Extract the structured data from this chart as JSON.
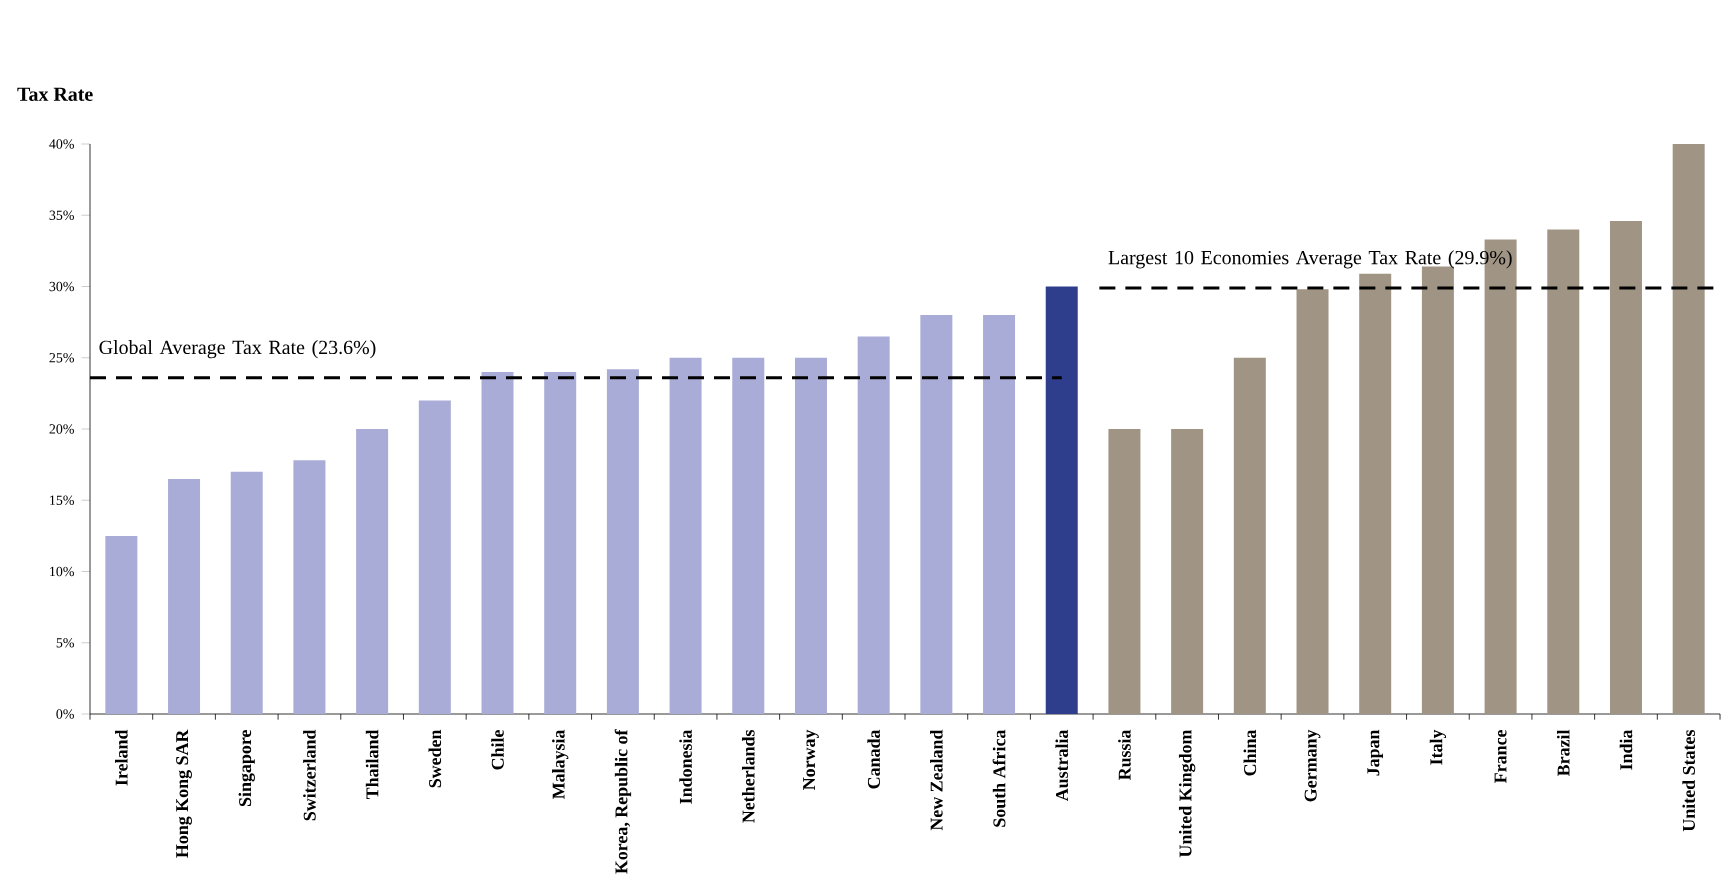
{
  "chart_data": {
    "type": "bar",
    "ylabel": "Tax Rate",
    "categories": [
      "Ireland",
      "Hong Kong SAR",
      "Singapore",
      "Switzerland",
      "Thailand",
      "Sweden",
      "Chile",
      "Malaysia",
      "Korea, Republic of",
      "Indonesia",
      "Netherlands",
      "Norway",
      "Canada",
      "New Zealand",
      "South Africa",
      "Australia",
      "Russia",
      "United Kingdom",
      "China",
      "Germany",
      "Japan",
      "Italy",
      "France",
      "Brazil",
      "India",
      "United States"
    ],
    "values": [
      12.5,
      16.5,
      17,
      17.8,
      20,
      22,
      24,
      24,
      24.2,
      25,
      25,
      25,
      26.5,
      28,
      28,
      30,
      20,
      20,
      25,
      29.8,
      30.9,
      31.4,
      33.3,
      34,
      34.6,
      40
    ],
    "colors": [
      "#a9acd6",
      "#a9acd6",
      "#a9acd6",
      "#a9acd6",
      "#a9acd6",
      "#a9acd6",
      "#a9acd6",
      "#a9acd6",
      "#a9acd6",
      "#a9acd6",
      "#a9acd6",
      "#a9acd6",
      "#a9acd6",
      "#a9acd6",
      "#a9acd6",
      "#2e3e8c",
      "#a09585",
      "#a09585",
      "#a09585",
      "#a09585",
      "#a09585",
      "#a09585",
      "#a09585",
      "#a09585",
      "#a09585",
      "#a09585"
    ],
    "ylim": [
      0,
      40
    ],
    "yticks": [
      {
        "value": 0,
        "label": "0%"
      },
      {
        "value": 5,
        "label": "5%"
      },
      {
        "value": 10,
        "label": "10%"
      },
      {
        "value": 15,
        "label": "15%"
      },
      {
        "value": 20,
        "label": "20%"
      },
      {
        "value": 25,
        "label": "25%"
      },
      {
        "value": 30,
        "label": "30%"
      },
      {
        "value": 35,
        "label": "35%"
      },
      {
        "value": 40,
        "label": "40%"
      }
    ],
    "ref_lines": [
      {
        "axis": "y",
        "value": 23.6,
        "label": "Global Average Tax Rate (23.6%)",
        "line_style": "dashed"
      },
      {
        "axis": "y",
        "value": 29.9,
        "label": "Largest 10 Economies Average Tax Rate (29.9%)",
        "line_style": "dashed"
      }
    ],
    "grid": false
  }
}
